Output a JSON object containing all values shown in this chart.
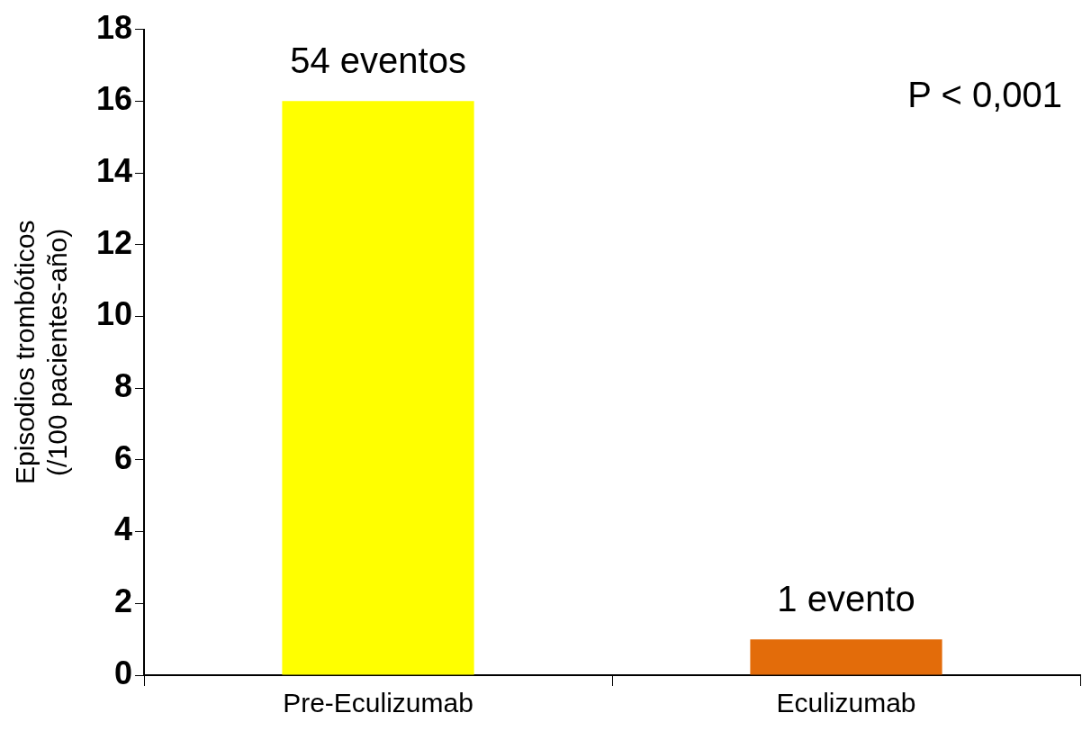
{
  "chart_data": {
    "type": "bar",
    "ylabel": "Episodios trombóticos\n(/100 pacientes-año)",
    "categories": [
      "Pre-Eculizumab",
      "Eculizumab"
    ],
    "values": [
      16,
      1
    ],
    "colors": [
      "#ffff00",
      "#e36c0a"
    ],
    "ylim": [
      0,
      18
    ],
    "yticks": [
      0,
      2,
      4,
      6,
      8,
      10,
      12,
      14,
      16,
      18
    ],
    "legend": false,
    "annotations": [
      {
        "text": "54 eventos",
        "x": "Pre-Eculizumab",
        "y": 16
      },
      {
        "text": "1 evento",
        "x": "Eculizumab",
        "y": 1
      },
      "P < 0,001"
    ]
  }
}
